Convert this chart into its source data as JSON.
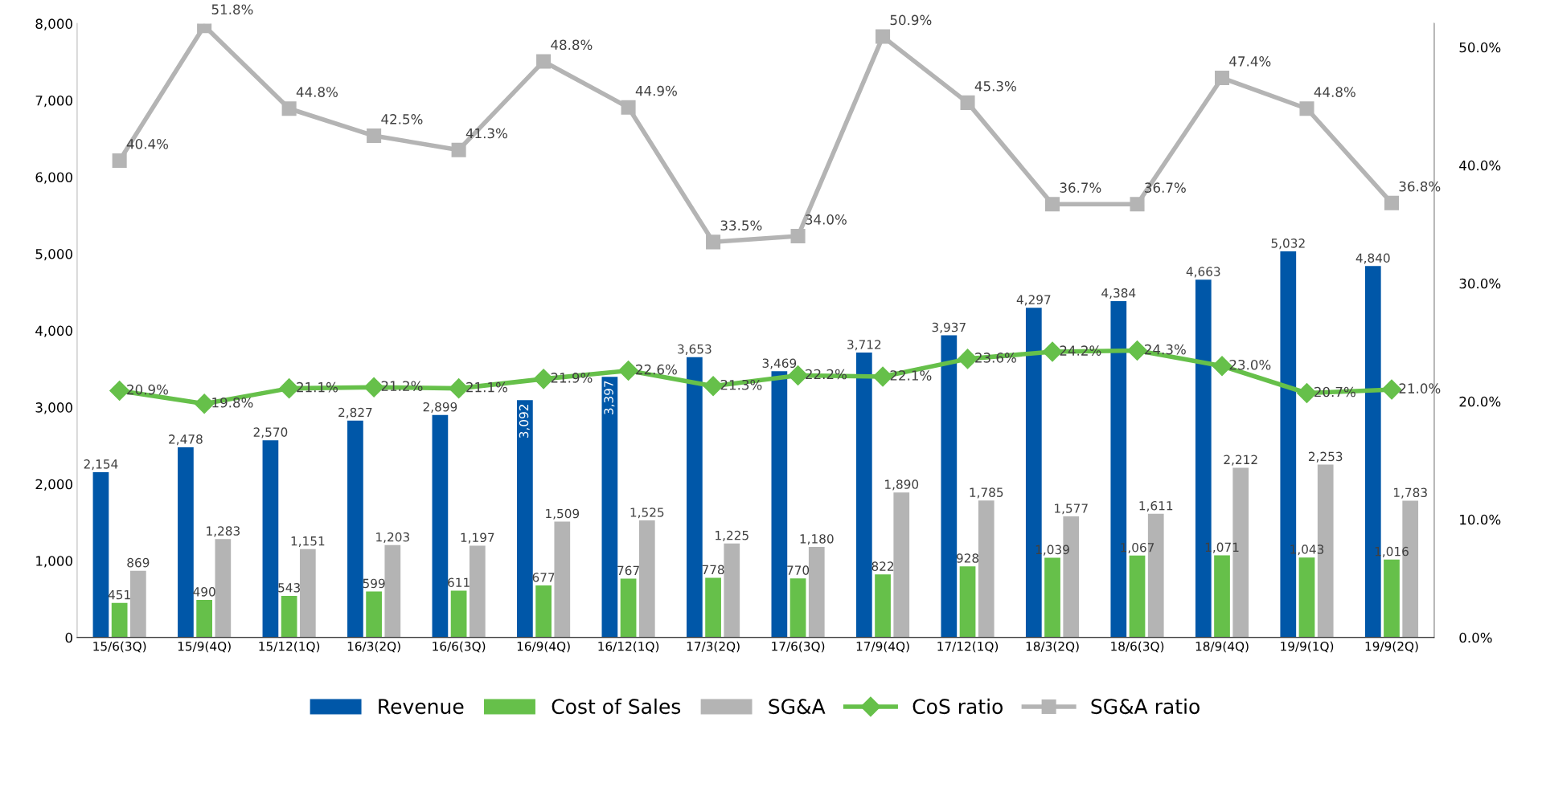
{
  "chart_data": {
    "type": "bar",
    "categories": [
      "15/6(3Q)",
      "15/9(4Q)",
      "15/12(1Q)",
      "16/3(2Q)",
      "16/6(3Q)",
      "16/9(4Q)",
      "16/12(1Q)",
      "17/3(2Q)",
      "17/6(3Q)",
      "17/9(4Q)",
      "17/12(1Q)",
      "18/3(2Q)",
      "18/6(3Q)",
      "18/9(4Q)",
      "19/9(1Q)",
      "19/9(2Q)"
    ],
    "series": [
      {
        "name": "Revenue",
        "color": "#0057a8",
        "values": [
          2154,
          2478,
          2570,
          2827,
          2899,
          3092,
          3397,
          3653,
          3469,
          3712,
          3937,
          4297,
          4384,
          4663,
          5032,
          4840
        ],
        "value_labels": [
          "2,154",
          "2,478",
          "2,570",
          "2,827",
          "2,899",
          "3,092",
          "3,397",
          "3,653",
          "3,469",
          "3,712",
          "3,937",
          "4,297",
          "4,384",
          "4,663",
          "5,032",
          "4,840"
        ]
      },
      {
        "name": "Cost of Sales",
        "color": "#66c04a",
        "values": [
          451,
          490,
          543,
          599,
          611,
          677,
          767,
          778,
          770,
          822,
          928,
          1039,
          1067,
          1071,
          1043,
          1016
        ],
        "value_labels": [
          "451",
          "490",
          "543",
          "599",
          "611",
          "677",
          "767",
          "778",
          "770",
          "822",
          "928",
          "1,039",
          "1,067",
          "1,071",
          "1,043",
          "1,016"
        ]
      },
      {
        "name": "SG&A",
        "color": "#b4b4b4",
        "values": [
          869,
          1283,
          1151,
          1203,
          1197,
          1509,
          1525,
          1225,
          1180,
          1890,
          1785,
          1577,
          1611,
          2212,
          2253,
          1783
        ],
        "value_labels": [
          "869",
          "1,283",
          "1,151",
          "1,203",
          "1,197",
          "1,509",
          "1,525",
          "1,225",
          "1,180",
          "1,890",
          "1,785",
          "1,577",
          "1,611",
          "2,212",
          "2,253",
          "1,783"
        ]
      },
      {
        "name": "CoS ratio",
        "type": "line",
        "axis": "y2",
        "color": "#66c04a",
        "marker": "diamond",
        "values": [
          20.9,
          19.8,
          21.1,
          21.2,
          21.1,
          21.9,
          22.6,
          21.3,
          22.2,
          22.1,
          23.6,
          24.2,
          24.3,
          23.0,
          20.7,
          21.0
        ],
        "value_labels": [
          "20.9%",
          "19.8%",
          "21.1%",
          "21.2%",
          "21.1%",
          "21.9%",
          "22.6%",
          "21.3%",
          "22.2%",
          "22.1%",
          "23.6%",
          "24.2%",
          "24.3%",
          "23.0%",
          "20.7%",
          "21.0%"
        ]
      },
      {
        "name": "SG&A ratio",
        "type": "line",
        "axis": "y2",
        "color": "#b4b4b4",
        "marker": "square",
        "values": [
          40.4,
          51.8,
          44.8,
          42.5,
          41.3,
          48.8,
          44.9,
          33.5,
          34.0,
          50.9,
          45.3,
          36.7,
          36.7,
          47.4,
          44.8,
          36.8
        ],
        "value_labels": [
          "40.4%",
          "51.8%",
          "44.8%",
          "42.5%",
          "41.3%",
          "48.8%",
          "44.9%",
          "33.5%",
          "34.0%",
          "50.9%",
          "45.3%",
          "36.7%",
          "36.7%",
          "47.4%",
          "44.8%",
          "36.8%"
        ]
      }
    ],
    "ylim": [
      0,
      8000
    ],
    "yticks": [
      {
        "value": 0,
        "label": "0"
      },
      {
        "value": 1000,
        "label": "1,000"
      },
      {
        "value": 2000,
        "label": "2,000"
      },
      {
        "value": 3000,
        "label": "3,000"
      },
      {
        "value": 4000,
        "label": "4,000"
      },
      {
        "value": 5000,
        "label": "5,000"
      },
      {
        "value": 6000,
        "label": "6,000"
      },
      {
        "value": 7000,
        "label": "7,000"
      },
      {
        "value": 8000,
        "label": "8,000"
      }
    ],
    "y2lim": [
      0,
      52
    ],
    "y2ticks": [
      {
        "value": 0,
        "label": "0.0%"
      },
      {
        "value": 10,
        "label": "10.0%"
      },
      {
        "value": 20,
        "label": "20.0%"
      },
      {
        "value": 30,
        "label": "30.0%"
      },
      {
        "value": 40,
        "label": "40.0%"
      },
      {
        "value": 50,
        "label": "50.0%"
      }
    ],
    "grid": false,
    "legend": "bottom"
  }
}
